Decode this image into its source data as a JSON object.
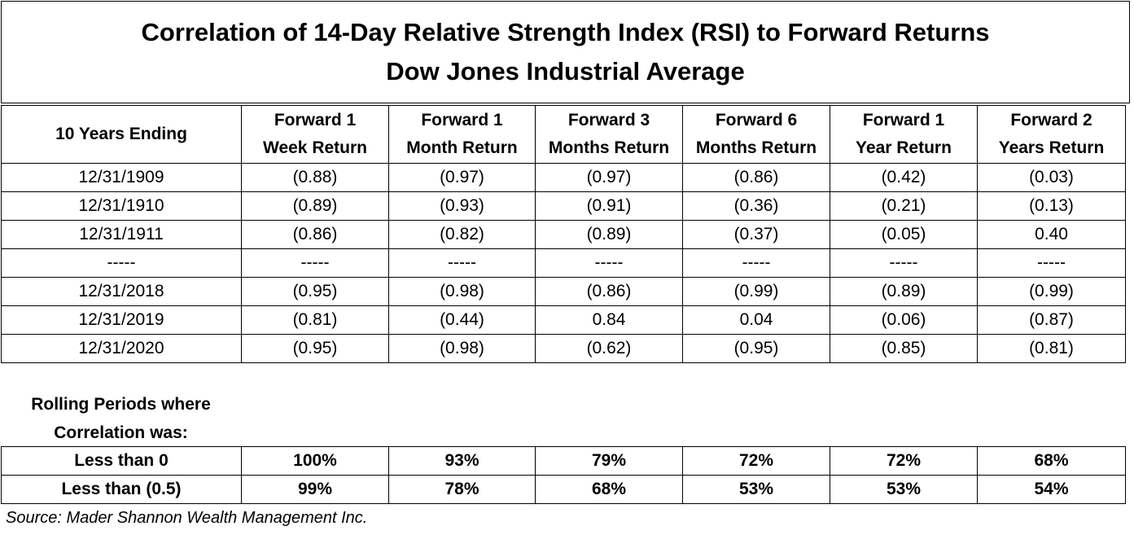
{
  "title": {
    "line1": "Correlation of 14-Day Relative Strength Index (RSI) to Forward Returns",
    "line2": "Dow Jones Industrial Average"
  },
  "columns": [
    {
      "line1": "10 Years Ending",
      "line2": ""
    },
    {
      "line1": "Forward 1",
      "line2": "Week Return"
    },
    {
      "line1": "Forward 1",
      "line2": "Month Return"
    },
    {
      "line1": "Forward 3",
      "line2": "Months Return"
    },
    {
      "line1": "Forward 6",
      "line2": "Months Return"
    },
    {
      "line1": "Forward 1",
      "line2": "Year Return"
    },
    {
      "line1": "Forward 2",
      "line2": "Years Return"
    }
  ],
  "rows": [
    [
      "12/31/1909",
      "(0.88)",
      "(0.97)",
      "(0.97)",
      "(0.86)",
      "(0.42)",
      "(0.03)"
    ],
    [
      "12/31/1910",
      "(0.89)",
      "(0.93)",
      "(0.91)",
      "(0.36)",
      "(0.21)",
      "(0.13)"
    ],
    [
      "12/31/1911",
      "(0.86)",
      "(0.82)",
      "(0.89)",
      "(0.37)",
      "(0.05)",
      "0.40"
    ],
    [
      "-----",
      "-----",
      "-----",
      "-----",
      "-----",
      "-----",
      "-----"
    ],
    [
      "12/31/2018",
      "(0.95)",
      "(0.98)",
      "(0.86)",
      "(0.99)",
      "(0.89)",
      "(0.99)"
    ],
    [
      "12/31/2019",
      "(0.81)",
      "(0.44)",
      "0.84",
      "0.04",
      "(0.06)",
      "(0.87)"
    ],
    [
      "12/31/2020",
      "(0.95)",
      "(0.98)",
      "(0.62)",
      "(0.95)",
      "(0.85)",
      "(0.81)"
    ]
  ],
  "rolling": {
    "line1": "Rolling Periods where",
    "line2": "Correlation was:"
  },
  "summary": [
    [
      "Less than 0",
      "100%",
      "93%",
      "79%",
      "72%",
      "72%",
      "68%"
    ],
    [
      "Less than (0.5)",
      "99%",
      "78%",
      "68%",
      "53%",
      "53%",
      "54%"
    ]
  ],
  "source": "Source: Mader Shannon Wealth Management Inc."
}
